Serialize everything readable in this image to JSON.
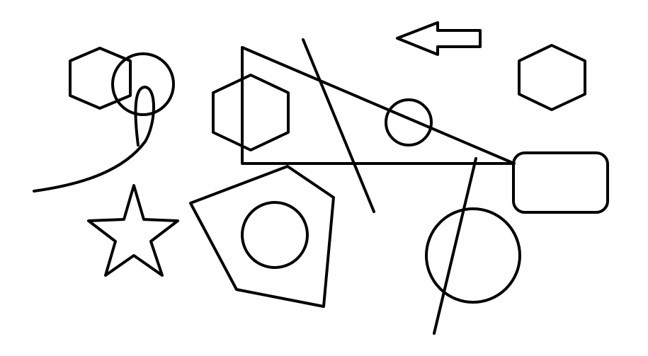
{
  "canvas": {
    "background": "#ffffff",
    "stroke_color": "#000000"
  },
  "shapes": [
    {
      "kind": "hexagon",
      "label": "hexagon-top-left"
    },
    {
      "kind": "circle",
      "label": "circle-top-left"
    },
    {
      "kind": "curve",
      "label": "loop-curve"
    },
    {
      "kind": "star",
      "label": "star"
    },
    {
      "kind": "hexagon",
      "label": "hexagon-center"
    },
    {
      "kind": "triangle",
      "label": "right-triangle"
    },
    {
      "kind": "line",
      "label": "diagonal-line-center"
    },
    {
      "kind": "circle",
      "label": "small-circle-center"
    },
    {
      "kind": "arrow",
      "label": "left-arrow"
    },
    {
      "kind": "hexagon",
      "label": "hexagon-top-right"
    },
    {
      "kind": "rounded-rectangle",
      "label": "rounded-rectangle-right"
    },
    {
      "kind": "pentagon",
      "label": "pentagon"
    },
    {
      "kind": "circle",
      "label": "circle-in-pentagon"
    },
    {
      "kind": "circle",
      "label": "large-circle-bottom-right"
    },
    {
      "kind": "line",
      "label": "diagonal-line-bottom-right"
    }
  ]
}
